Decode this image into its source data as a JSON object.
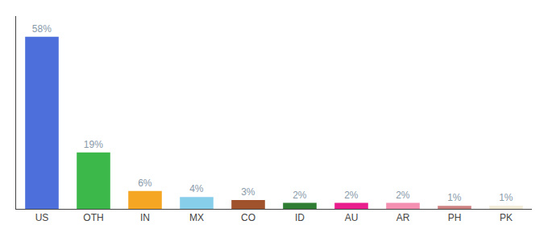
{
  "chart_data": {
    "type": "bar",
    "categories": [
      "US",
      "OTH",
      "IN",
      "MX",
      "CO",
      "ID",
      "AU",
      "AR",
      "PH",
      "PK"
    ],
    "values": [
      58,
      19,
      6,
      4,
      3,
      2,
      2,
      2,
      1,
      1
    ],
    "value_labels": [
      "58%",
      "19%",
      "6%",
      "4%",
      "3%",
      "2%",
      "2%",
      "2%",
      "1%",
      "1%"
    ],
    "colors": [
      "#4d6fdb",
      "#3cb84a",
      "#f5a623",
      "#87ceeb",
      "#a0522d",
      "#2e7d32",
      "#e91e8c",
      "#f48fb1",
      "#cd8080",
      "#f0ead6"
    ],
    "ylim": [
      0,
      65
    ],
    "data_labels": true,
    "tick_labels": "x",
    "grid": false
  }
}
